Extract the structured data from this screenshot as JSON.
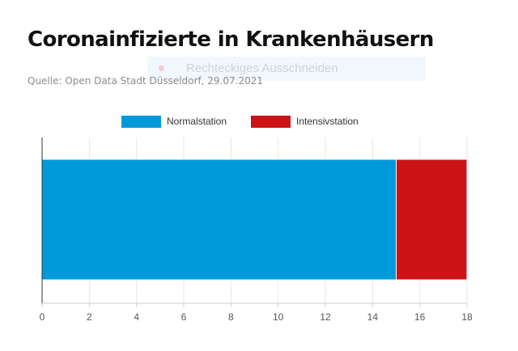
{
  "header": {
    "title": "Coronainfizierte in Krankenhäusern",
    "source": "Quelle: Open Data Stadt Düsseldorf, 29.07.2021"
  },
  "overlay": {
    "label": "Rechteckiges Ausschneiden"
  },
  "chart_data": {
    "type": "bar",
    "orientation": "horizontal",
    "stacked": true,
    "categories": [
      ""
    ],
    "series": [
      {
        "name": "Normalstation",
        "values": [
          15
        ],
        "color": "#0099d9"
      },
      {
        "name": "Intensivstation",
        "values": [
          3
        ],
        "color": "#cc1416"
      }
    ],
    "xlim": [
      0,
      18
    ],
    "xticks": [
      0,
      2,
      4,
      6,
      8,
      10,
      12,
      14,
      16,
      18
    ],
    "grid": true,
    "legend": "top-center"
  }
}
